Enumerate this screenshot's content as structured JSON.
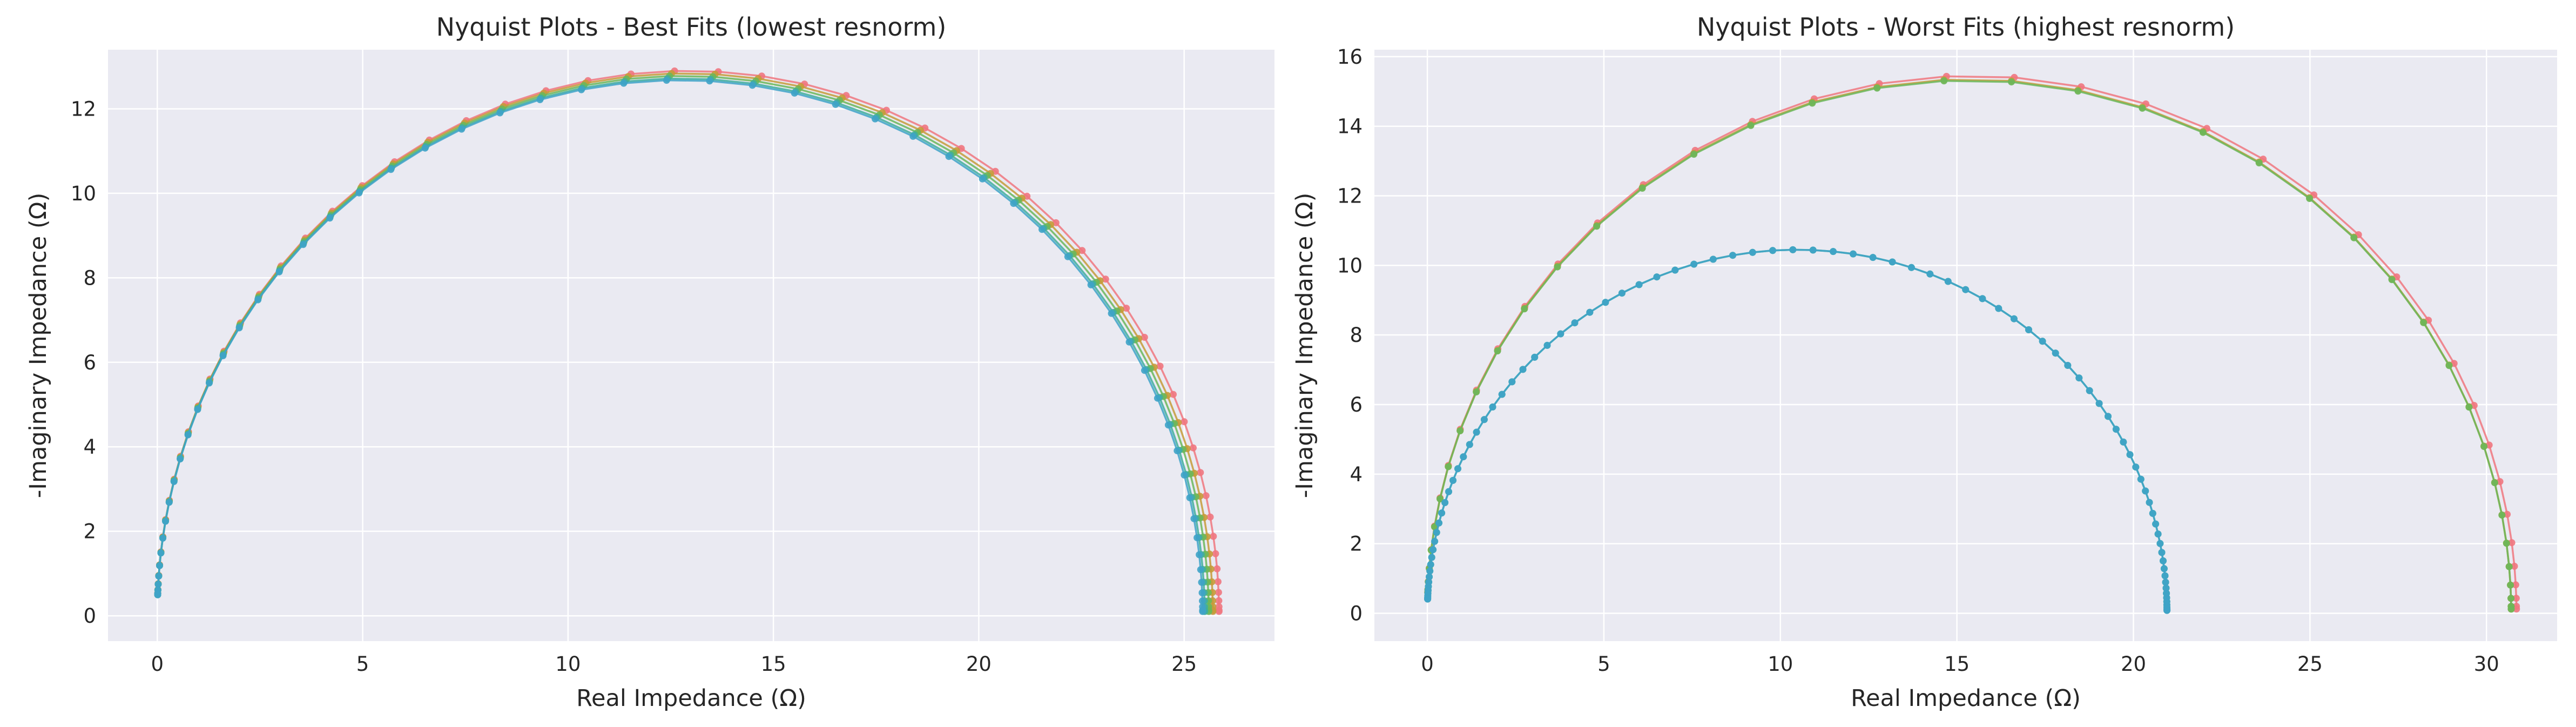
{
  "colors": {
    "plot_background": "#EAEAF2",
    "grid": "#FFFFFF",
    "text": "#262626"
  },
  "chart_data": [
    {
      "type": "scatter",
      "title": "Nyquist Plots - Best Fits (lowest resnorm)",
      "xlabel": "Real Impedance (Ω)",
      "ylabel": "-Imaginary Impedance (Ω)",
      "xlim": [
        -1.2,
        27.2
      ],
      "ylim": [
        -0.6,
        13.4
      ],
      "xticks": [
        0,
        5,
        10,
        15,
        20,
        25
      ],
      "yticks": [
        0,
        2,
        4,
        6,
        8,
        10,
        12
      ],
      "grid": true,
      "series": [
        {
          "color": "#F0777F",
          "r0": 0.0,
          "r1": 25.85,
          "peak": 12.9,
          "n": 60
        },
        {
          "color": "#C59B3A",
          "r0": 0.0,
          "r1": 25.7,
          "peak": 12.84,
          "n": 60
        },
        {
          "color": "#6BB75A",
          "r0": 0.0,
          "r1": 25.6,
          "peak": 12.78,
          "n": 60
        },
        {
          "color": "#3FAE9C",
          "r0": 0.0,
          "r1": 25.5,
          "peak": 12.72,
          "n": 60
        },
        {
          "color": "#3FA3C8",
          "r0": 0.0,
          "r1": 25.45,
          "peak": 12.68,
          "n": 60
        }
      ]
    },
    {
      "type": "scatter",
      "title": "Nyquist Plots - Worst Fits (highest resnorm)",
      "xlabel": "Real Impedance (Ω)",
      "ylabel": "-Imaginary Impedance (Ω)",
      "xlim": [
        -1.5,
        32.0
      ],
      "ylim": [
        -0.8,
        16.2
      ],
      "xticks": [
        0,
        5,
        10,
        15,
        20,
        25,
        30
      ],
      "yticks": [
        0,
        2,
        4,
        6,
        8,
        10,
        12,
        14,
        16
      ],
      "grid": true,
      "series": [
        {
          "color": "#F0777F",
          "r0": 0.0,
          "r1": 30.85,
          "peak": 15.45,
          "n": 40
        },
        {
          "color": "#C59B3A",
          "r0": 0.0,
          "r1": 30.7,
          "peak": 15.35,
          "n": 40
        },
        {
          "color": "#6BB75A",
          "r0": 0.0,
          "r1": 30.7,
          "peak": 15.32,
          "n": 40
        },
        {
          "color": "#3FAE9C",
          "r0": 0.0,
          "r1": 20.95,
          "peak": 10.45,
          "n": 90
        },
        {
          "color": "#3FA3C8",
          "r0": 0.0,
          "r1": 20.95,
          "peak": 10.45,
          "n": 90
        }
      ]
    }
  ]
}
